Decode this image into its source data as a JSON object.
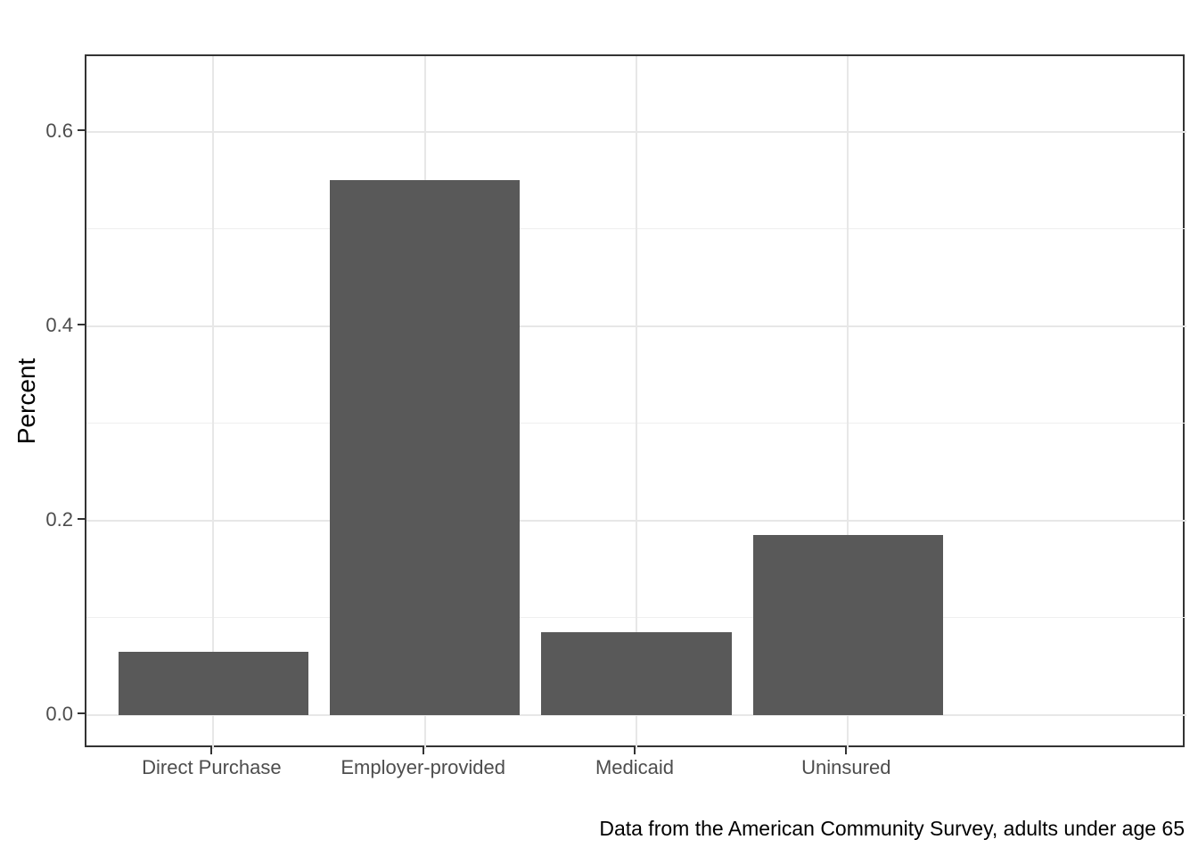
{
  "figure": {
    "background": "#ffffff"
  },
  "chart_data": {
    "type": "bar",
    "categories": [
      "Direct Purchase",
      "Employer-provided",
      "Medicaid",
      "Uninsured"
    ],
    "values": [
      0.065,
      0.55,
      0.085,
      0.185
    ],
    "title": "",
    "xlabel": "",
    "ylabel": "Percent",
    "caption": "Data from the American Community Survey, adults under age 65",
    "ylim": [
      -0.035,
      0.678
    ],
    "yticks": [
      0.0,
      0.2,
      0.4,
      0.6
    ],
    "ytick_labels": [
      "0.0",
      "0.2",
      "0.4",
      "0.6"
    ],
    "yminor": [
      0.1,
      0.3,
      0.5
    ],
    "grid": true,
    "legend": false,
    "bar_width_frac": 0.9,
    "x_expand": 0.6,
    "style": {
      "bar_fill": "#595959",
      "grid_major": "#e7e7e7",
      "grid_minor": "#efefef",
      "panel_border": "#333333",
      "tick_mark": "#333333",
      "tick_text": "#4d4d4d",
      "text": "#000000",
      "panel_bg": "#ffffff"
    }
  }
}
